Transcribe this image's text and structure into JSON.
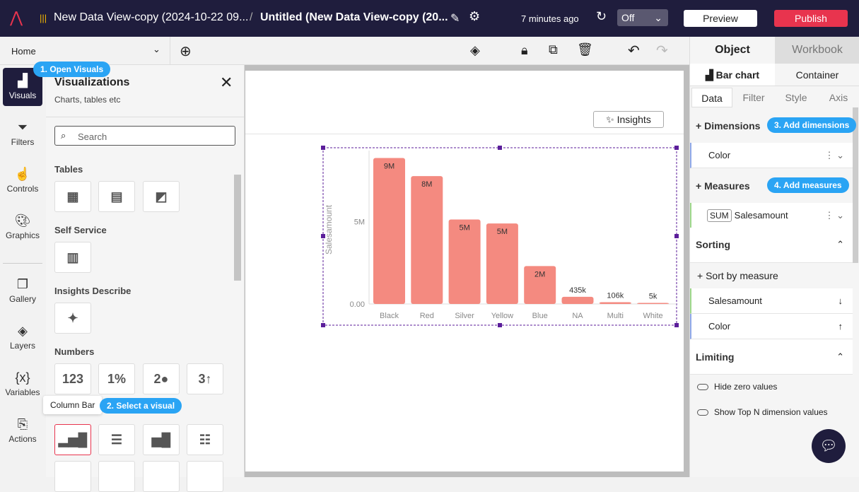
{
  "header": {
    "breadcrumb_dataset": "New Data View-copy (2024-10-22 09...",
    "separator": "/",
    "title": "Untitled (New Data View-copy (20...",
    "saved": "7 minutes ago",
    "toggle_value": "Off",
    "preview": "Preview",
    "publish": "Publish"
  },
  "toolbar": {
    "page": "Home"
  },
  "nav": [
    {
      "label": "Visuals",
      "icon": "chart-plus-icon"
    },
    {
      "label": "Filters",
      "icon": "filter-icon"
    },
    {
      "label": "Controls",
      "icon": "touch-icon"
    },
    {
      "label": "Graphics",
      "icon": "palette-icon"
    },
    {
      "label": "Gallery",
      "icon": "gallery-icon"
    },
    {
      "label": "Layers",
      "icon": "layers-icon"
    },
    {
      "label": "Variables",
      "icon": "variables-icon"
    },
    {
      "label": "Actions",
      "icon": "actions-icon"
    }
  ],
  "visualizations": {
    "title": "Visualizations",
    "subtitle": "Charts, tables etc",
    "search_placeholder": "Search",
    "sections": [
      "Tables",
      "Self Service",
      "Insights Describe",
      "Numbers"
    ],
    "numbers_tiles": [
      "123",
      "1%",
      "2●",
      "3↑"
    ],
    "tooltip": "Column Bar"
  },
  "callouts": {
    "c1": "1. Open Visuals",
    "c2": "2. Select a visual",
    "c3": "3. Add dimensions",
    "c4": "4. Add measures"
  },
  "canvas": {
    "insights": "Insights"
  },
  "chart_data": {
    "type": "bar",
    "categories": [
      "Black",
      "Red",
      "Silver",
      "Yellow",
      "Blue",
      "NA",
      "Multi",
      "White"
    ],
    "values": [
      8850000,
      7750000,
      5120000,
      4880000,
      2300000,
      435000,
      106000,
      5000
    ],
    "data_labels": [
      "9M",
      "8M",
      "5M",
      "5M",
      "2M",
      "435k",
      "106k",
      "5k"
    ],
    "ylabel": "Salesamount",
    "y_ticks": [
      "0.00",
      "5M"
    ],
    "ylim": [
      0,
      9000000
    ],
    "color": "#f48a80"
  },
  "right": {
    "tabs": [
      "Object",
      "Workbook"
    ],
    "subtabs": [
      "Bar chart",
      "Container"
    ],
    "datatabs": [
      "Data",
      "Filter",
      "Style",
      "Axis"
    ],
    "dimensions": "Dimensions",
    "dim_field": "Color",
    "measures": "Measures",
    "agg": "SUM",
    "measure_field": "Salesamount",
    "sorting": "Sorting",
    "sort_by": "Sort by measure",
    "sort1": "Salesamount",
    "sort2": "Color",
    "limiting": "Limiting",
    "hide_zero": "Hide zero values",
    "top_n": "Show Top N dimension values"
  }
}
